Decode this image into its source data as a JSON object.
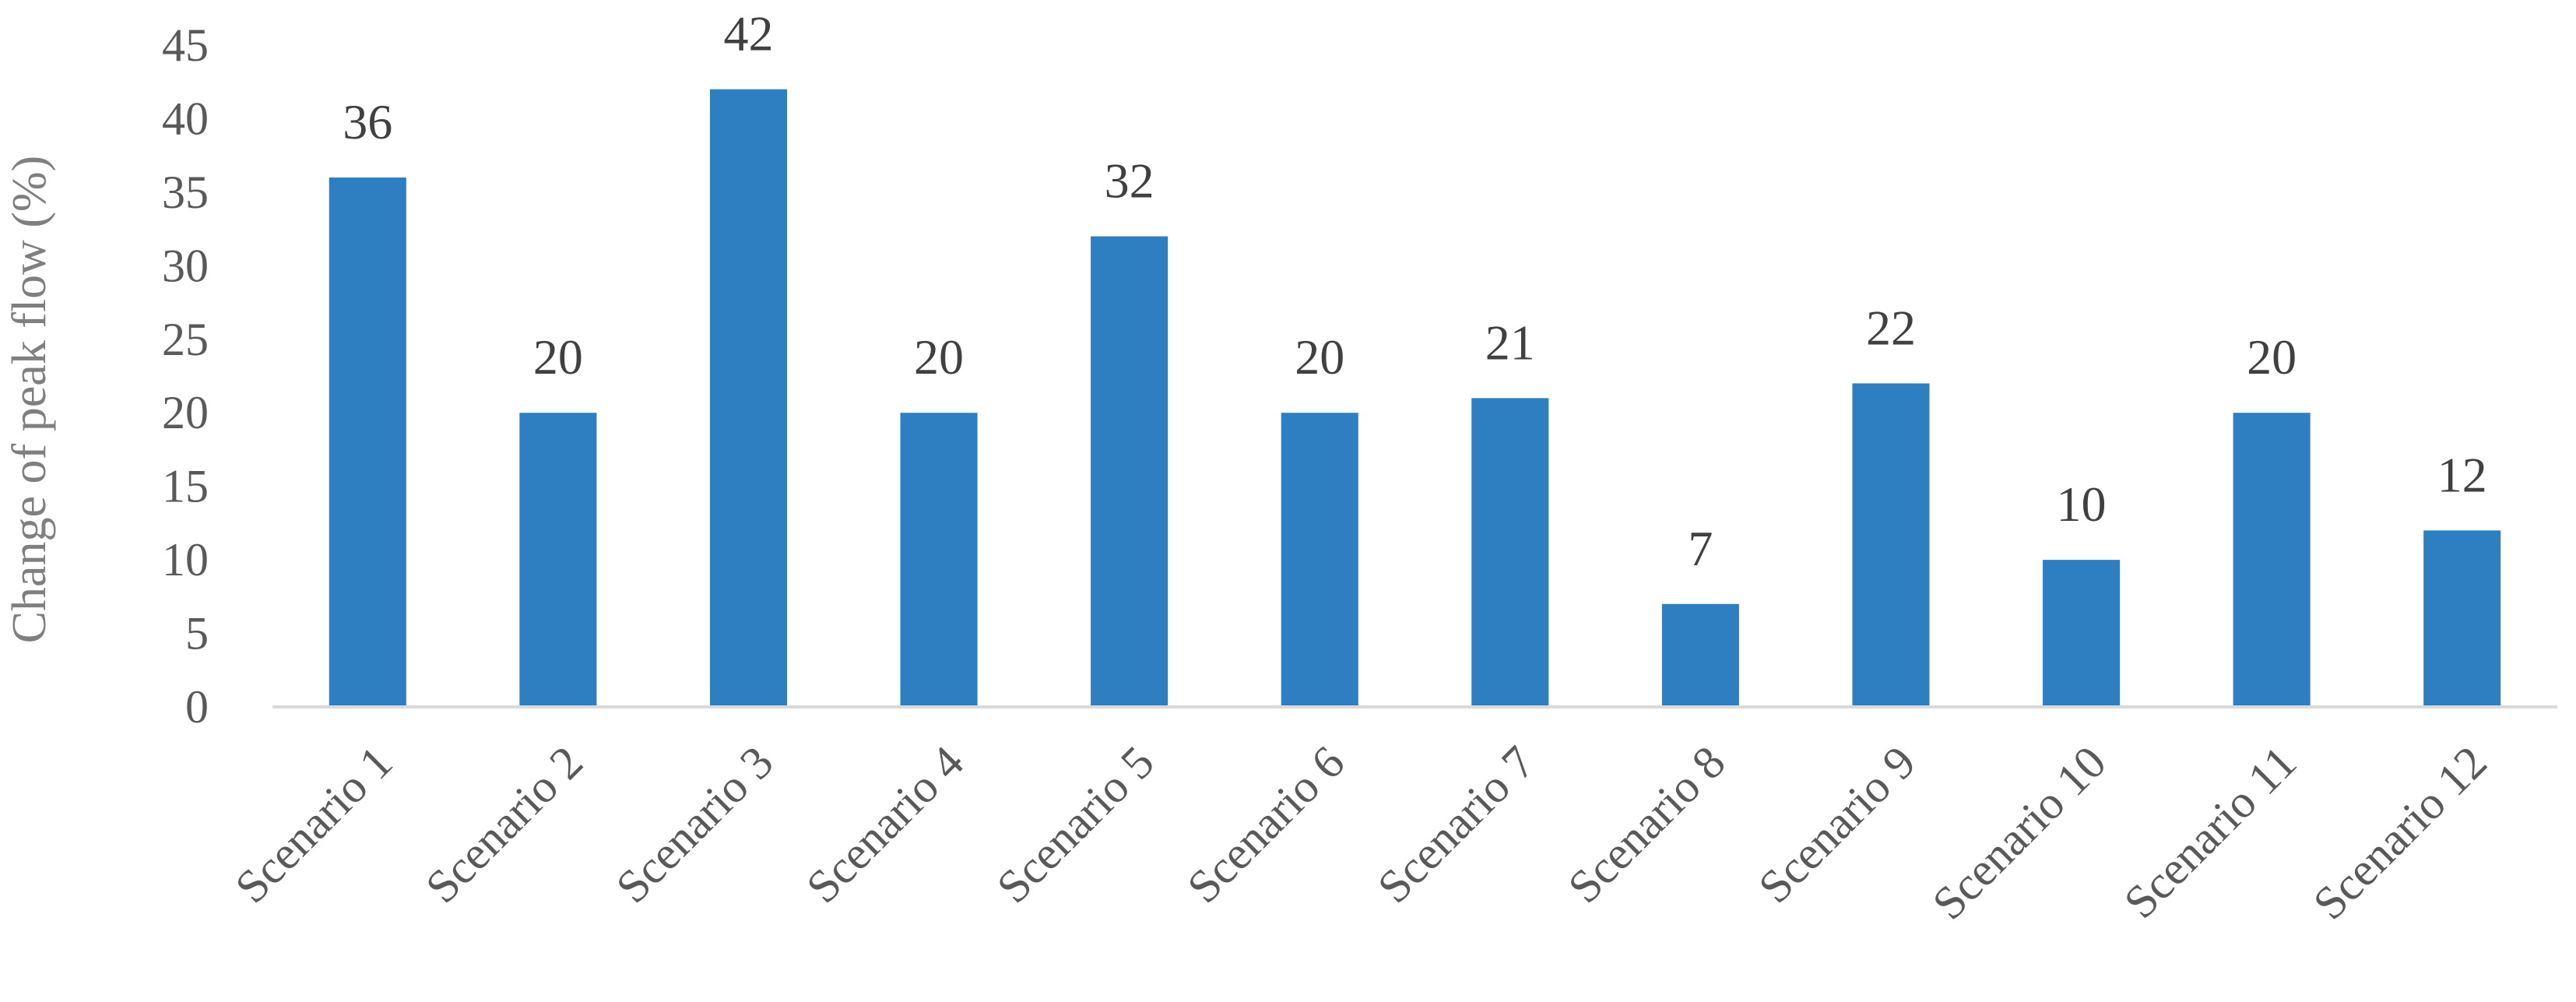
{
  "chart_data": {
    "type": "bar",
    "title": "",
    "xlabel": "",
    "ylabel": "Change of peak flow (%)",
    "categories": [
      "Scenario 1",
      "Scenario 2",
      "Scenario 3",
      "Scenario 4",
      "Scenario 5",
      "Scenario 6",
      "Scenario 7",
      "Scenario 8",
      "Scenario 9",
      "Scenario 10",
      "Scenario 11",
      "Scenario 12"
    ],
    "values": [
      36,
      20,
      42,
      20,
      32,
      20,
      21,
      7,
      22,
      10,
      20,
      12
    ],
    "data_labels": [
      "36",
      "20",
      "42",
      "20",
      "32",
      "20",
      "21",
      "7",
      "22",
      "10",
      "20",
      "12"
    ],
    "ylim": [
      0,
      45
    ],
    "yticks": [
      0,
      5,
      10,
      15,
      20,
      25,
      30,
      35,
      40,
      45
    ],
    "grid": false,
    "legend": "none",
    "colors": {
      "bar": "#2e7fc1",
      "axis": "#d9d9d9",
      "tick_text": "#595959",
      "data_label_text": "#404040",
      "axis_title_text": "#7f7f7f"
    }
  }
}
